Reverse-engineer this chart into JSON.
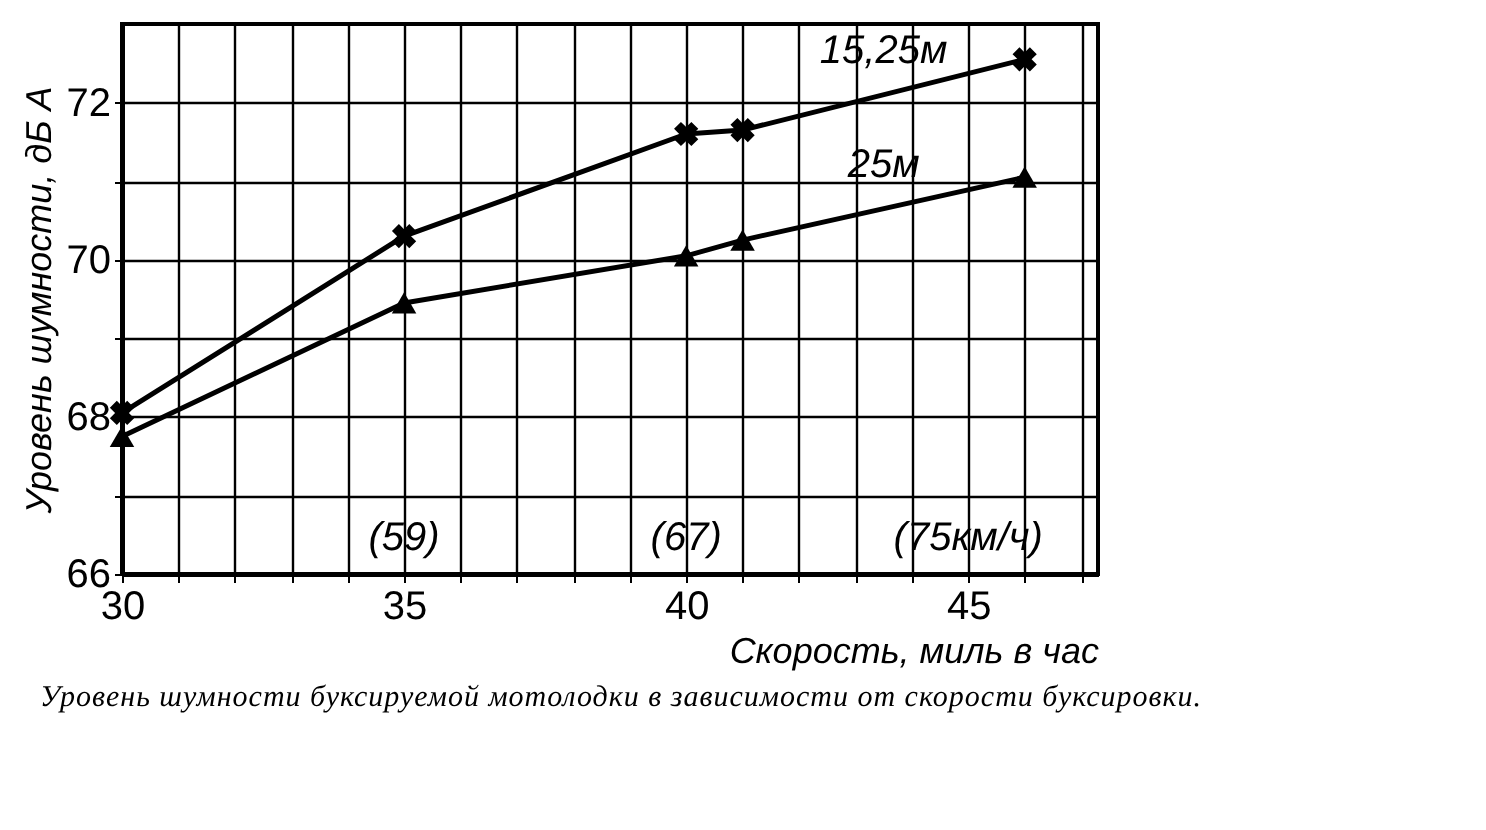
{
  "chart_data": {
    "type": "line",
    "xlabel": "Скорость, миль в час",
    "ylabel": "Уровень шумности, дБ А",
    "xlim": [
      30,
      47.3
    ],
    "ylim": [
      66,
      73
    ],
    "xticks": [
      30,
      {
        "value": 31,
        "label": null
      },
      {
        "value": 32,
        "label": null
      },
      {
        "value": 33,
        "label": null
      },
      {
        "value": 34,
        "label": null
      },
      35,
      {
        "value": 36,
        "label": null
      },
      {
        "value": 37,
        "label": null
      },
      {
        "value": 38,
        "label": null
      },
      {
        "value": 39,
        "label": null
      },
      40,
      {
        "value": 41,
        "label": null
      },
      {
        "value": 42,
        "label": null
      },
      {
        "value": 43,
        "label": null
      },
      {
        "value": 44,
        "label": null
      },
      45,
      {
        "value": 46,
        "label": null
      },
      {
        "value": 47,
        "label": null
      }
    ],
    "yticks": [
      66,
      {
        "value": 67,
        "label": null
      },
      68,
      {
        "value": 69,
        "label": null
      },
      70,
      {
        "value": 71,
        "label": null
      },
      72
    ],
    "grid": true,
    "series": [
      {
        "name": "15,25м",
        "color": "#000000",
        "marker": "cross",
        "x": [
          30,
          35,
          40,
          41,
          46
        ],
        "values": [
          68.05,
          70.3,
          71.6,
          71.65,
          72.55
        ]
      },
      {
        "name": "25м",
        "color": "#000000",
        "marker": "triangle",
        "x": [
          30,
          35,
          40,
          41,
          46
        ],
        "values": [
          67.75,
          69.45,
          70.05,
          70.25,
          71.05
        ]
      }
    ],
    "annotations": [
      "(59)",
      "(67)",
      "(75км/ч)"
    ],
    "title": "Уровень шумности буксируемой мотолодки в зависимости от скорости буксировки."
  }
}
